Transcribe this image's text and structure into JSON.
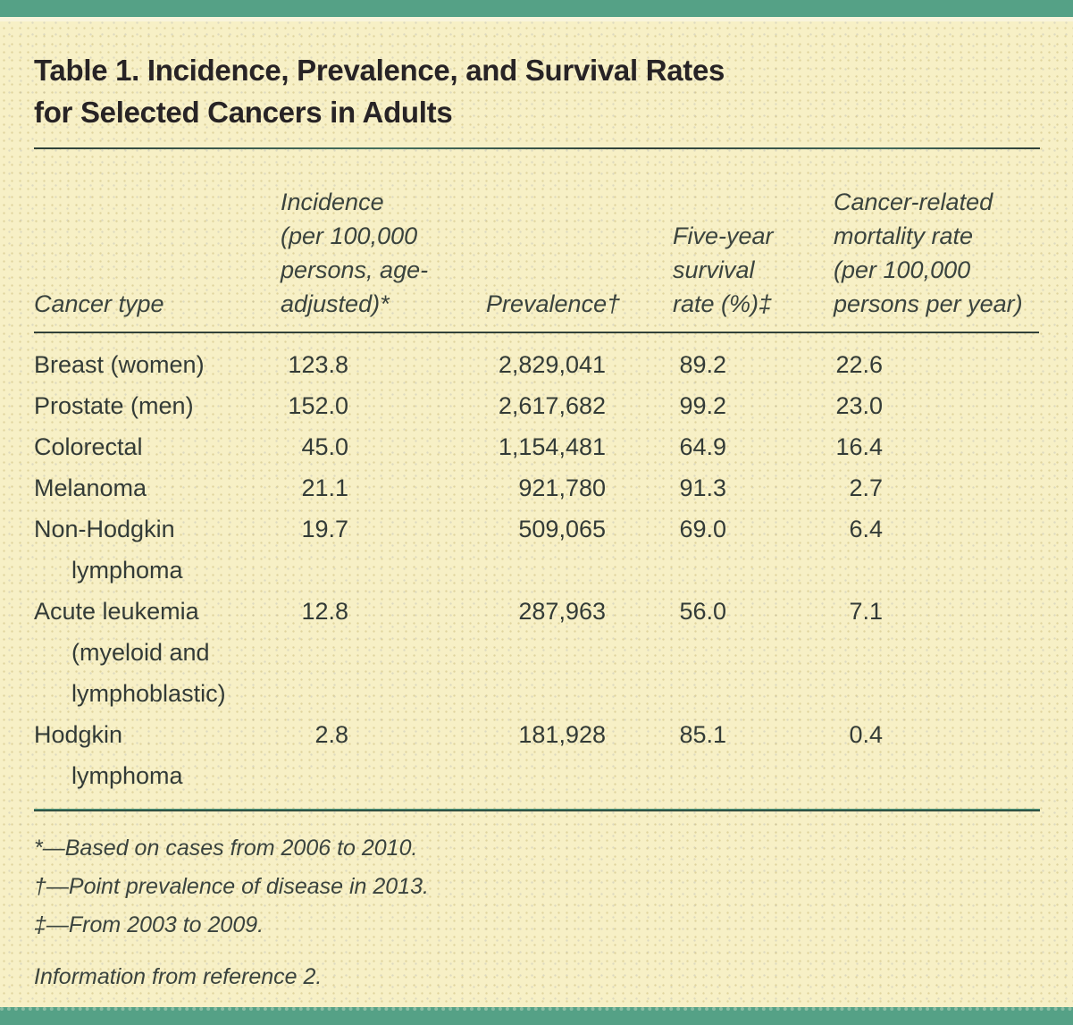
{
  "colors": {
    "accent_teal": "#55a186",
    "background_cream": "#f7f0c6",
    "text_dark": "#272325",
    "rule_dark": "#31413a"
  },
  "title_lines": [
    "Table 1. Incidence, Prevalence, and Survival Rates",
    "for Selected Cancers in Adults"
  ],
  "table": {
    "headers": {
      "cancer_type": "Cancer type",
      "incidence_lines": [
        "Incidence",
        "(per 100,000",
        "persons, age-",
        "adjusted)*"
      ],
      "prevalence": "Prevalence†",
      "survival_lines": [
        "Five-year",
        "survival",
        "rate (%)‡"
      ],
      "mortality_lines": [
        "Cancer-related",
        "mortality rate",
        "(per 100,000",
        "persons per year)"
      ]
    },
    "rows": [
      {
        "cancer_type_lines": [
          "Breast (women)"
        ],
        "incidence": "123.8",
        "prevalence": "2,829,041",
        "survival": "89.2",
        "mortality": "22.6"
      },
      {
        "cancer_type_lines": [
          "Prostate (men)"
        ],
        "incidence": "152.0",
        "prevalence": "2,617,682",
        "survival": "99.2",
        "mortality": "23.0"
      },
      {
        "cancer_type_lines": [
          "Colorectal"
        ],
        "incidence": "45.0",
        "prevalence": "1,154,481",
        "survival": "64.9",
        "mortality": "16.4"
      },
      {
        "cancer_type_lines": [
          "Melanoma"
        ],
        "incidence": "21.1",
        "prevalence": "921,780",
        "survival": "91.3",
        "mortality": "2.7"
      },
      {
        "cancer_type_lines": [
          "Non-Hodgkin",
          "lymphoma"
        ],
        "incidence": "19.7",
        "prevalence": "509,065",
        "survival": "69.0",
        "mortality": "6.4"
      },
      {
        "cancer_type_lines": [
          "Acute leukemia",
          "(myeloid and",
          "lymphoblastic)"
        ],
        "incidence": "12.8",
        "prevalence": "287,963",
        "survival": "56.0",
        "mortality": "7.1"
      },
      {
        "cancer_type_lines": [
          "Hodgkin",
          "lymphoma"
        ],
        "incidence": "2.8",
        "prevalence": "181,928",
        "survival": "85.1",
        "mortality": "0.4"
      }
    ]
  },
  "footnotes": [
    "*—Based on cases from 2006 to 2010.",
    "†—Point prevalence of disease in 2013.",
    "‡—From 2003 to 2009."
  ],
  "source": "Information from reference 2."
}
